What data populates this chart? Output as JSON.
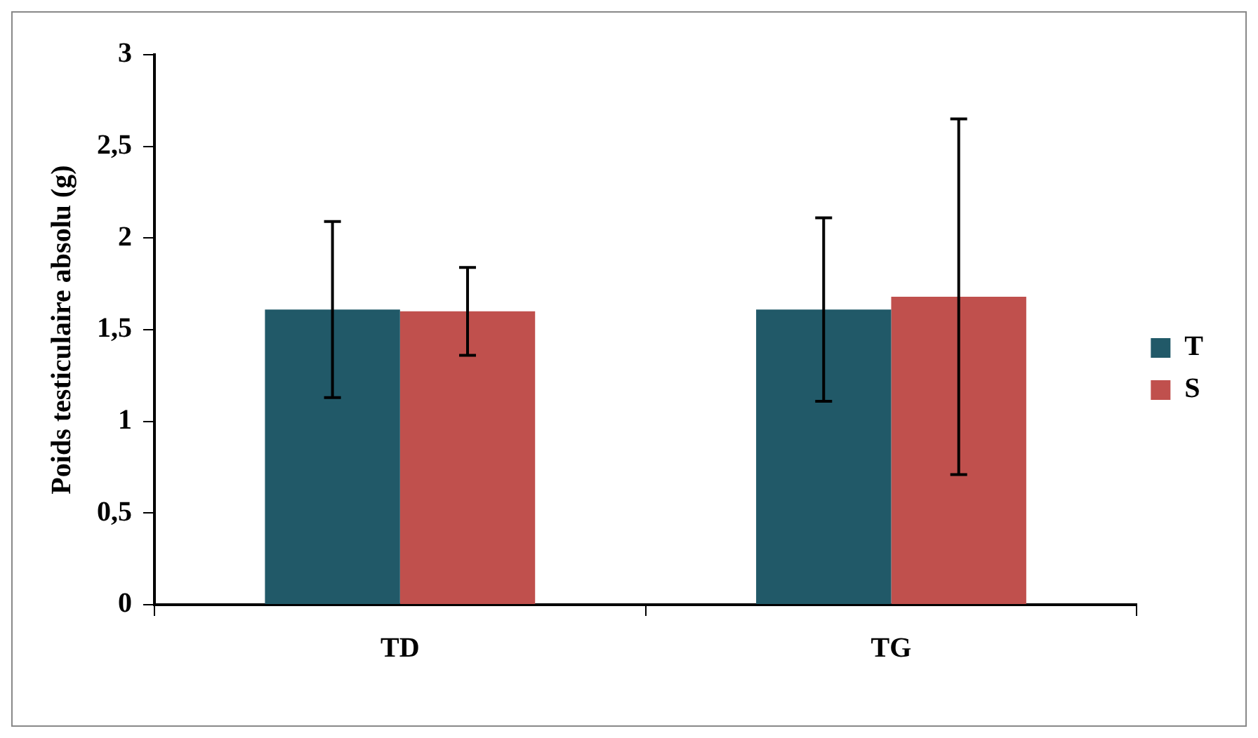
{
  "chart_data": {
    "type": "bar",
    "ylabel": "Poids testiculaire absolu (g)",
    "categories": [
      "TD",
      "TG"
    ],
    "series": [
      {
        "name": "T",
        "color": "#215968",
        "values": [
          1.61,
          1.61
        ],
        "errors": [
          0.48,
          0.5
        ]
      },
      {
        "name": "S",
        "color": "#c0504d",
        "values": [
          1.6,
          1.68
        ],
        "errors": [
          0.24,
          0.97
        ]
      }
    ],
    "ylim": [
      0,
      3
    ],
    "yticks": [
      0,
      {
        "value": 0.5,
        "label": "0,5"
      },
      1,
      {
        "value": 1.5,
        "label": "1,5"
      },
      2,
      {
        "value": 2.5,
        "label": "2,5"
      },
      3
    ],
    "grid": false,
    "legend": "right"
  }
}
